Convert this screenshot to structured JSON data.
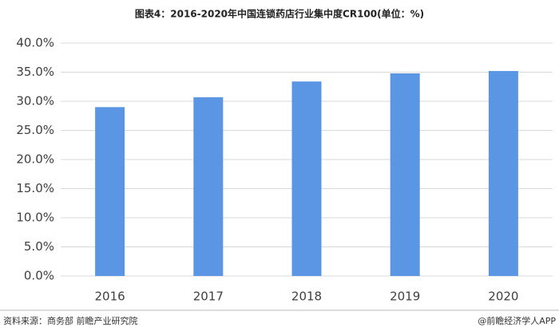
{
  "chart_data": {
    "type": "bar",
    "title": "图表4：2016-2020年中国连锁药店行业集中度CR100(单位：%)",
    "categories": [
      "2016",
      "2017",
      "2018",
      "2019",
      "2020"
    ],
    "values": [
      29.0,
      30.7,
      33.4,
      34.8,
      35.2
    ],
    "color": "#5a96e3",
    "ylim": [
      0,
      40
    ],
    "yticks": [
      {
        "value": 0,
        "label": "0.0%"
      },
      {
        "value": 5,
        "label": "5.0%"
      },
      {
        "value": 10,
        "label": "10.0%"
      },
      {
        "value": 15,
        "label": "15.0%"
      },
      {
        "value": 20,
        "label": "20.0%"
      },
      {
        "value": 25,
        "label": "25.0%"
      },
      {
        "value": 30,
        "label": "30.0%"
      },
      {
        "value": 35,
        "label": "35.0%"
      },
      {
        "value": 40,
        "label": "40.0%"
      }
    ],
    "grid": true,
    "source": "资料来源：商务部 前瞻产业研究院",
    "credit": "@前瞻经济学人APP"
  }
}
